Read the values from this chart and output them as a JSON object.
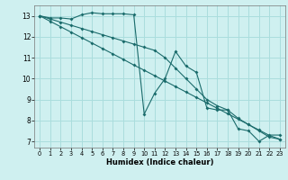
{
  "xlabel": "Humidex (Indice chaleur)",
  "background_color": "#cff0f0",
  "grid_color": "#aadddd",
  "line_color": "#1a6b6b",
  "xlim": [
    -0.5,
    23.5
  ],
  "ylim": [
    6.7,
    13.5
  ],
  "yticks": [
    7,
    8,
    9,
    10,
    11,
    12,
    13
  ],
  "xticks": [
    0,
    1,
    2,
    3,
    4,
    5,
    6,
    7,
    8,
    9,
    10,
    11,
    12,
    13,
    14,
    15,
    16,
    17,
    18,
    19,
    20,
    21,
    22,
    23
  ],
  "line1_x": [
    0,
    1,
    2,
    3,
    4,
    5,
    6,
    7,
    8,
    9,
    10,
    11,
    12,
    13,
    14,
    15,
    16,
    17,
    18,
    19,
    20,
    21,
    22,
    23
  ],
  "line1_y": [
    13,
    12.9,
    12.9,
    12.85,
    13.05,
    13.15,
    13.1,
    13.1,
    13.1,
    13.05,
    8.3,
    9.3,
    10.0,
    11.3,
    10.6,
    10.3,
    8.6,
    8.5,
    8.5,
    7.6,
    7.5,
    7.0,
    7.3,
    7.3
  ],
  "line2_x": [
    0,
    1,
    2,
    3,
    4,
    5,
    6,
    7,
    8,
    9,
    10,
    11,
    12,
    13,
    14,
    15,
    16,
    17,
    18,
    19,
    20,
    21,
    22,
    23
  ],
  "line2_y": [
    13,
    12.74,
    12.48,
    12.22,
    11.96,
    11.7,
    11.44,
    11.18,
    10.92,
    10.65,
    10.4,
    10.14,
    9.88,
    9.62,
    9.36,
    9.1,
    8.84,
    8.58,
    8.32,
    8.06,
    7.8,
    7.54,
    7.28,
    7.1
  ],
  "line3_x": [
    0,
    1,
    2,
    3,
    4,
    5,
    6,
    7,
    8,
    9,
    10,
    11,
    12,
    13,
    14,
    15,
    16,
    17,
    18,
    19,
    20,
    21,
    22,
    23
  ],
  "line3_y": [
    13,
    12.85,
    12.7,
    12.55,
    12.4,
    12.25,
    12.1,
    11.95,
    11.8,
    11.65,
    11.5,
    11.35,
    11.0,
    10.5,
    10.0,
    9.5,
    9.0,
    8.7,
    8.5,
    8.1,
    7.8,
    7.5,
    7.2,
    7.1
  ]
}
